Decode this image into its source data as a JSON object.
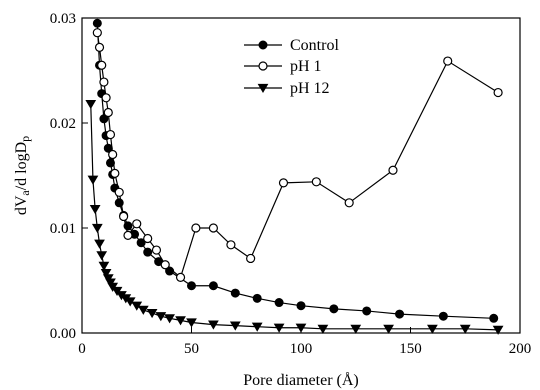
{
  "chart_data": {
    "type": "line",
    "title": "",
    "xlabel": "Pore diameter (Å)",
    "ylabel": "dVa/d logDp",
    "ylabel_parts": {
      "base1": "dV",
      "sub1": "a",
      "mid": "/d logD",
      "sub2": "p"
    },
    "xlim": [
      0,
      200
    ],
    "ylim": [
      0,
      0.03
    ],
    "x_ticks": [
      0,
      50,
      100,
      150,
      200
    ],
    "y_ticks": [
      0.0,
      0.01,
      0.02,
      0.03
    ],
    "x_tick_labels": [
      "0",
      "50",
      "100",
      "150",
      "200"
    ],
    "y_tick_labels": [
      "0.00",
      "0.01",
      "0.02",
      "0.03"
    ],
    "grid": false,
    "legend_position": "top-center",
    "series": [
      {
        "name": "Control",
        "marker": "filled-circle",
        "color": "#000000",
        "x": [
          7,
          8,
          9,
          10,
          11,
          12,
          13,
          14,
          15,
          17,
          19,
          21,
          24,
          27,
          30,
          35,
          40,
          50,
          60,
          70,
          80,
          90,
          100,
          115,
          130,
          145,
          165,
          188
        ],
        "y": [
          0.0295,
          0.0255,
          0.0228,
          0.0204,
          0.0188,
          0.0176,
          0.0162,
          0.0151,
          0.0138,
          0.0124,
          0.0112,
          0.0102,
          0.0094,
          0.0086,
          0.0077,
          0.0068,
          0.0059,
          0.0045,
          0.0045,
          0.0038,
          0.0033,
          0.0029,
          0.0026,
          0.0023,
          0.0021,
          0.0018,
          0.0016,
          0.0014
        ]
      },
      {
        "name": "pH 1",
        "marker": "open-circle",
        "color": "#000000",
        "x": [
          7,
          8,
          9,
          10,
          11,
          12,
          13,
          14,
          15,
          17,
          19,
          21,
          25,
          30,
          34,
          38,
          45,
          52,
          60,
          68,
          77,
          92,
          107,
          122,
          142,
          167,
          190
        ],
        "y": [
          0.0286,
          0.0272,
          0.0255,
          0.0239,
          0.0224,
          0.021,
          0.0189,
          0.017,
          0.0152,
          0.0134,
          0.0111,
          0.0093,
          0.0104,
          0.009,
          0.0079,
          0.0065,
          0.0053,
          0.01,
          0.01,
          0.0084,
          0.0071,
          0.0143,
          0.0144,
          0.0124,
          0.0155,
          0.0259,
          0.0229
        ]
      },
      {
        "name": "pH 12",
        "marker": "filled-triangle-down",
        "color": "#000000",
        "x": [
          4,
          5,
          6,
          7,
          8,
          9,
          10,
          11,
          12,
          13,
          14,
          16,
          18,
          20,
          22,
          25,
          28,
          32,
          36,
          40,
          45,
          50,
          60,
          70,
          80,
          90,
          100,
          110,
          125,
          140,
          160,
          175,
          190
        ],
        "y": [
          0.0218,
          0.0146,
          0.0118,
          0.01,
          0.0085,
          0.0074,
          0.0064,
          0.0057,
          0.0052,
          0.0048,
          0.0044,
          0.004,
          0.0036,
          0.0033,
          0.003,
          0.0026,
          0.0022,
          0.0019,
          0.0016,
          0.0014,
          0.0012,
          0.001,
          0.0008,
          0.0007,
          0.0006,
          0.0005,
          0.0005,
          0.0004,
          0.0004,
          0.0004,
          0.0004,
          0.0004,
          0.0003
        ]
      }
    ]
  }
}
